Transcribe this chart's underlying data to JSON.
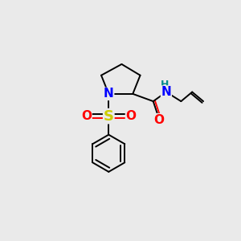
{
  "background_color": "#eaeaea",
  "atom_colors": {
    "N": "#0000ff",
    "O": "#ff0000",
    "S": "#cccc00",
    "C": "#000000",
    "H": "#008b8b"
  },
  "bond_color": "#000000",
  "bond_lw": 1.4,
  "font_size_atoms": 11,
  "font_size_h": 9,
  "Nx": 4.2,
  "Ny": 6.5,
  "C2x": 5.5,
  "C2y": 6.5,
  "C3x": 5.9,
  "C3y": 7.5,
  "C4x": 4.9,
  "C4y": 8.1,
  "C5x": 3.8,
  "C5y": 7.5,
  "COx": 6.6,
  "COy": 6.1,
  "Ox": 6.9,
  "Oy": 5.2,
  "NHx": 7.3,
  "NHy": 6.6,
  "CH2x": 8.1,
  "CH2y": 6.1,
  "CHax": 8.7,
  "CHay": 6.6,
  "CH2bx": 9.3,
  "CH2by": 6.1,
  "Sx": 4.2,
  "Sy": 5.3,
  "O1x": 3.1,
  "O1y": 5.3,
  "O2x": 5.3,
  "O2y": 5.3,
  "PhCx": 4.2,
  "PhCy": 3.3,
  "PhR": 1.0
}
